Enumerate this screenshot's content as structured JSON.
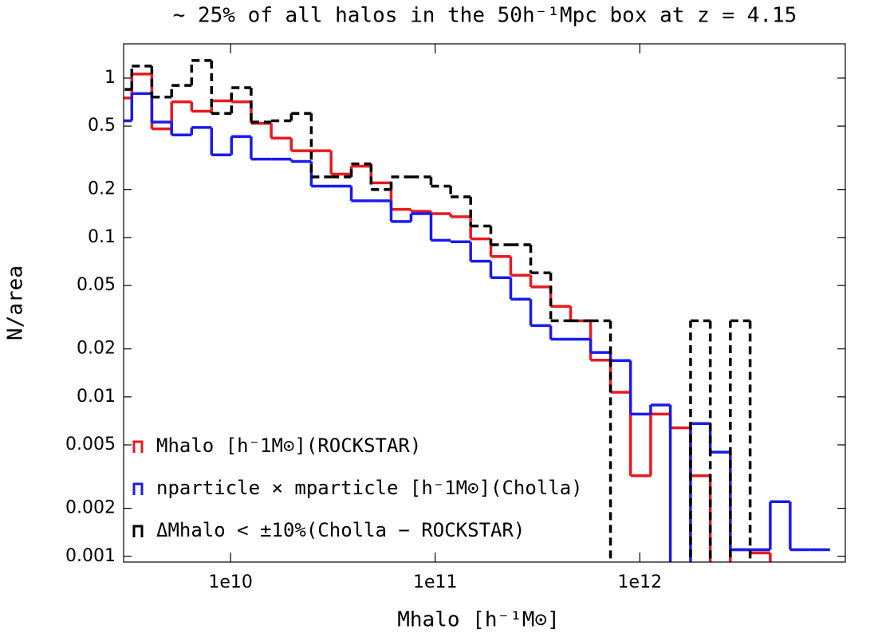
{
  "chart_data": {
    "type": "step_histogram",
    "title": "∼ 25% of all halos in the 50h⁻¹Mpc box at z = 4.15",
    "xlabel": "Mhalo [h⁻¹M⊙]",
    "ylabel": "N/area",
    "xscale": "log",
    "yscale": "log",
    "xlim": [
      3000000000.0,
      10100000000000.0
    ],
    "ylim": [
      0.00092,
      1.64
    ],
    "xticks": [
      {
        "value": 10000000000.0,
        "label": "1e10"
      },
      {
        "value": 100000000000.0,
        "label": "1e11"
      },
      {
        "value": 1000000000000.0,
        "label": "1e12"
      }
    ],
    "yticks": [
      1,
      0.5,
      0.2,
      0.1,
      0.05,
      0.02,
      0.01,
      0.005,
      0.002,
      0.001
    ],
    "legend": "lower left",
    "bins": [
      2630000000.0,
      3290000000.0,
      4120000000.0,
      5150000000.0,
      6450000000.0,
      8070000000.0,
      10100000000.0,
      12600000000.0,
      15800000000.0,
      19800000000.0,
      24800000000.0,
      31000000000.0,
      38900000000.0,
      48600000000.0,
      60900000000.0,
      76200000000.0,
      95400000000.0,
      119000000000.0,
      149000000000.0,
      187000000000.0,
      234000000000.0,
      293000000000.0,
      367000000000.0,
      459000000000.0,
      575000000000.0,
      719000000000.0,
      901000000000.0,
      1130000000000.0,
      1410000000000.0,
      1770000000000.0,
      2210000000000.0,
      2770000000000.0,
      3460000000000.0,
      4340000000000.0,
      5430000000000.0,
      6790000000000.0,
      8500000000000.0
    ],
    "series": [
      {
        "name": "Mhalo [h⁻1M⊙](ROCKSTAR)",
        "color": "#e8191f",
        "linestyle": "solid",
        "values": [
          0.75,
          1.06,
          0.48,
          0.71,
          0.62,
          0.72,
          0.71,
          0.52,
          0.42,
          0.35,
          0.35,
          0.25,
          0.28,
          0.22,
          0.15,
          0.146,
          0.141,
          0.135,
          0.098,
          0.076,
          0.058,
          0.049,
          0.037,
          0.03,
          0.017,
          0.0107,
          0.0032,
          0.0078,
          0.0064,
          0.0032,
          0,
          0.0011,
          0.00105,
          0,
          0,
          0
        ]
      },
      {
        "name": "nparticle × mparticle [h⁻1M⊙](Cholla)",
        "color": "#1a1aee",
        "linestyle": "solid",
        "values": [
          0.54,
          0.8,
          0.53,
          0.44,
          0.49,
          0.33,
          0.43,
          0.31,
          0.31,
          0.3,
          0.21,
          0.21,
          0.17,
          0.17,
          0.126,
          0.141,
          0.096,
          0.094,
          0.071,
          0.056,
          0.041,
          0.028,
          0.023,
          0.023,
          0.019,
          0.0169,
          0.0078,
          0.0089,
          0,
          0.0068,
          0.0045,
          0.0011,
          0.0011,
          0.0022,
          0.0011,
          0.0011
        ]
      },
      {
        "name": "ΔMhalo < ±10%(Cholla − ROCKSTAR)",
        "color": "#000000",
        "linestyle": "dashed",
        "values": [
          0.85,
          1.19,
          0.76,
          0.9,
          1.29,
          0.6,
          0.87,
          0.53,
          0.54,
          0.6,
          0.24,
          0.24,
          0.29,
          0.2,
          0.24,
          0.24,
          0.21,
          0.18,
          0.118,
          0.09,
          0.09,
          0.06,
          0.03,
          0.03,
          0.03,
          0,
          0,
          0,
          0,
          0.03,
          0,
          0.03,
          0,
          0,
          0,
          0
        ]
      }
    ]
  }
}
